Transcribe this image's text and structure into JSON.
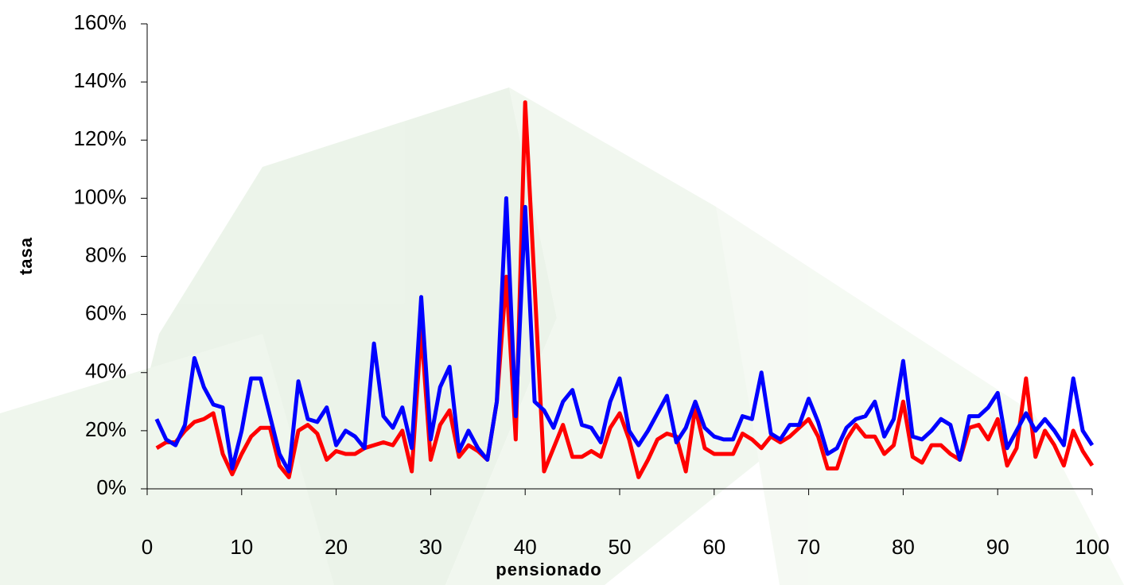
{
  "chart_data": {
    "type": "line",
    "x_label": "pensionado",
    "y_label": "tasa",
    "x": [
      1,
      2,
      3,
      4,
      5,
      6,
      7,
      8,
      9,
      10,
      11,
      12,
      13,
      14,
      15,
      16,
      17,
      18,
      19,
      20,
      21,
      22,
      23,
      24,
      25,
      26,
      27,
      28,
      29,
      30,
      31,
      32,
      33,
      34,
      35,
      36,
      37,
      38,
      39,
      40,
      41,
      42,
      43,
      44,
      45,
      46,
      47,
      48,
      49,
      50,
      51,
      52,
      53,
      54,
      55,
      56,
      57,
      58,
      59,
      60,
      61,
      62,
      63,
      64,
      65,
      66,
      67,
      68,
      69,
      70,
      71,
      72,
      73,
      74,
      75,
      76,
      77,
      78,
      79,
      80,
      81,
      82,
      83,
      84,
      85,
      86,
      87,
      88,
      89,
      90,
      91,
      92,
      93,
      94,
      95,
      96,
      97,
      98,
      99,
      100
    ],
    "series": [
      {
        "color": "#ff0000",
        "values": [
          14,
          16,
          16,
          20,
          23,
          24,
          26,
          12,
          5,
          12,
          18,
          21,
          21,
          8,
          4,
          20,
          22,
          19,
          10,
          13,
          12,
          12,
          14,
          15,
          16,
          15,
          20,
          6,
          55,
          10,
          22,
          27,
          11,
          15,
          13,
          10,
          30,
          73,
          17,
          133,
          70,
          6,
          14,
          22,
          11,
          11,
          13,
          11,
          21,
          26,
          17,
          4,
          10,
          17,
          19,
          18,
          6,
          28,
          14,
          12,
          12,
          12,
          19,
          17,
          14,
          18,
          16,
          18,
          21,
          24,
          18,
          7,
          7,
          17,
          22,
          18,
          18,
          12,
          15,
          30,
          11,
          9,
          15,
          15,
          12,
          10,
          21,
          22,
          17,
          24,
          8,
          14,
          38,
          11,
          20,
          15,
          8,
          20,
          13,
          8
        ]
      },
      {
        "color": "#0000ff",
        "values": [
          24,
          17,
          15,
          22,
          45,
          35,
          29,
          28,
          7,
          20,
          38,
          38,
          25,
          12,
          6,
          37,
          24,
          23,
          28,
          15,
          20,
          18,
          14,
          50,
          25,
          21,
          28,
          14,
          66,
          17,
          35,
          42,
          13,
          20,
          14,
          10,
          30,
          100,
          25,
          97,
          30,
          27,
          21,
          30,
          34,
          22,
          21,
          16,
          30,
          38,
          20,
          15,
          20,
          26,
          32,
          16,
          21,
          30,
          21,
          18,
          17,
          17,
          25,
          24,
          40,
          19,
          17,
          22,
          22,
          31,
          23,
          12,
          14,
          21,
          24,
          25,
          30,
          18,
          24,
          44,
          18,
          17,
          20,
          24,
          22,
          10,
          25,
          25,
          28,
          33,
          14,
          20,
          26,
          20,
          24,
          20,
          15,
          38,
          20,
          15
        ]
      }
    ],
    "xlim": [
      0,
      100
    ],
    "xticks": [
      0,
      10,
      20,
      30,
      40,
      50,
      60,
      70,
      80,
      90,
      100
    ],
    "ylim": [
      0,
      160
    ],
    "yticks": [
      {
        "value": 0,
        "label": "0%"
      },
      {
        "value": 20,
        "label": "20%"
      },
      {
        "value": 40,
        "label": "40%"
      },
      {
        "value": 60,
        "label": "60%"
      },
      {
        "value": 80,
        "label": "80%"
      },
      {
        "value": 100,
        "label": "100%"
      },
      {
        "value": 120,
        "label": "120%"
      },
      {
        "value": 140,
        "label": "140%"
      },
      {
        "value": 160,
        "label": "160%"
      }
    ],
    "grid": false
  }
}
